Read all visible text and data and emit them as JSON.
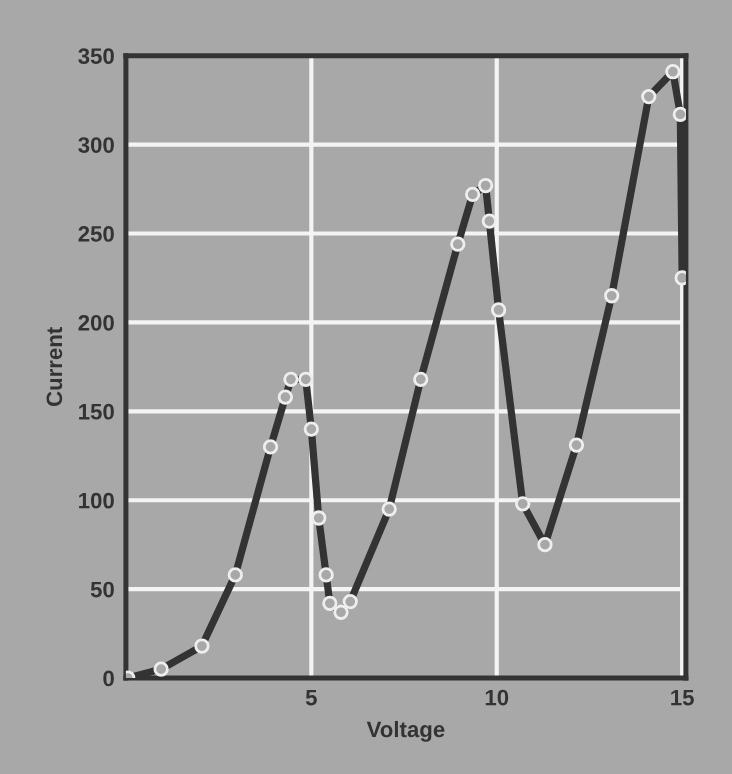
{
  "chart_data": {
    "type": "line",
    "xlabel": "Voltage",
    "ylabel": "Current",
    "x": [
      0.05,
      0.95,
      2.05,
      2.95,
      3.9,
      4.3,
      4.45,
      4.85,
      5.0,
      5.2,
      5.4,
      5.5,
      5.8,
      6.05,
      7.1,
      7.95,
      8.95,
      9.35,
      9.7,
      9.8,
      10.05,
      10.7,
      11.3,
      12.15,
      13.1,
      14.1,
      14.75,
      14.95,
      15.0
    ],
    "series": [
      {
        "color": "#333333",
        "values": [
          0,
          5,
          18,
          58,
          130,
          158,
          168,
          168,
          140,
          90,
          58,
          42,
          37,
          43,
          95,
          168,
          244,
          272,
          277,
          257,
          207,
          98,
          75,
          131,
          215,
          327,
          341,
          317,
          225
        ]
      }
    ],
    "xlim": [
      0,
      15.1
    ],
    "xticks": [
      {
        "value": 0,
        "label": null
      },
      5,
      10,
      15
    ],
    "ylim": [
      0,
      350
    ],
    "yticks": [
      0,
      50,
      100,
      150,
      200,
      250,
      300,
      350
    ],
    "grid": true,
    "marker": "circle",
    "line_style": "solid"
  }
}
